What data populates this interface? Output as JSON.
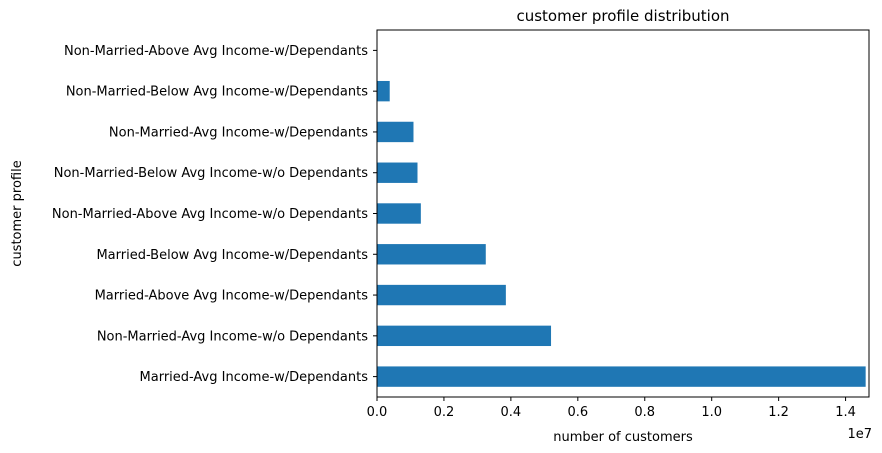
{
  "chart_data": {
    "type": "bar",
    "orientation": "horizontal",
    "title": "customer profile distribution",
    "xlabel": "number of customers",
    "ylabel": "customer profile",
    "x_offset_label": "1e7",
    "categories": [
      "Married-Avg Income-w/Dependants",
      "Non-Married-Avg Income-w/o Dependants",
      "Married-Above Avg Income-w/Dependants",
      "Married-Below Avg Income-w/Dependants",
      "Non-Married-Above Avg Income-w/o Dependants",
      "Non-Married-Below Avg Income-w/o Dependants",
      "Non-Married-Avg Income-w/Dependants",
      "Non-Married-Below Avg Income-w/Dependants",
      "Non-Married-Above Avg Income-w/Dependants"
    ],
    "values": [
      14600000,
      5200000,
      3850000,
      3250000,
      1310000,
      1210000,
      1090000,
      380000,
      0
    ],
    "xlim": [
      0,
      14700000
    ],
    "xticks": [
      0,
      2000000,
      4000000,
      6000000,
      8000000,
      10000000,
      12000000,
      14000000
    ],
    "xtick_labels": [
      "0.0",
      "0.2",
      "0.4",
      "0.6",
      "0.8",
      "1.0",
      "1.2",
      "1.4"
    ],
    "bar_color": "#1f77b4",
    "grid": false,
    "legend": false
  }
}
